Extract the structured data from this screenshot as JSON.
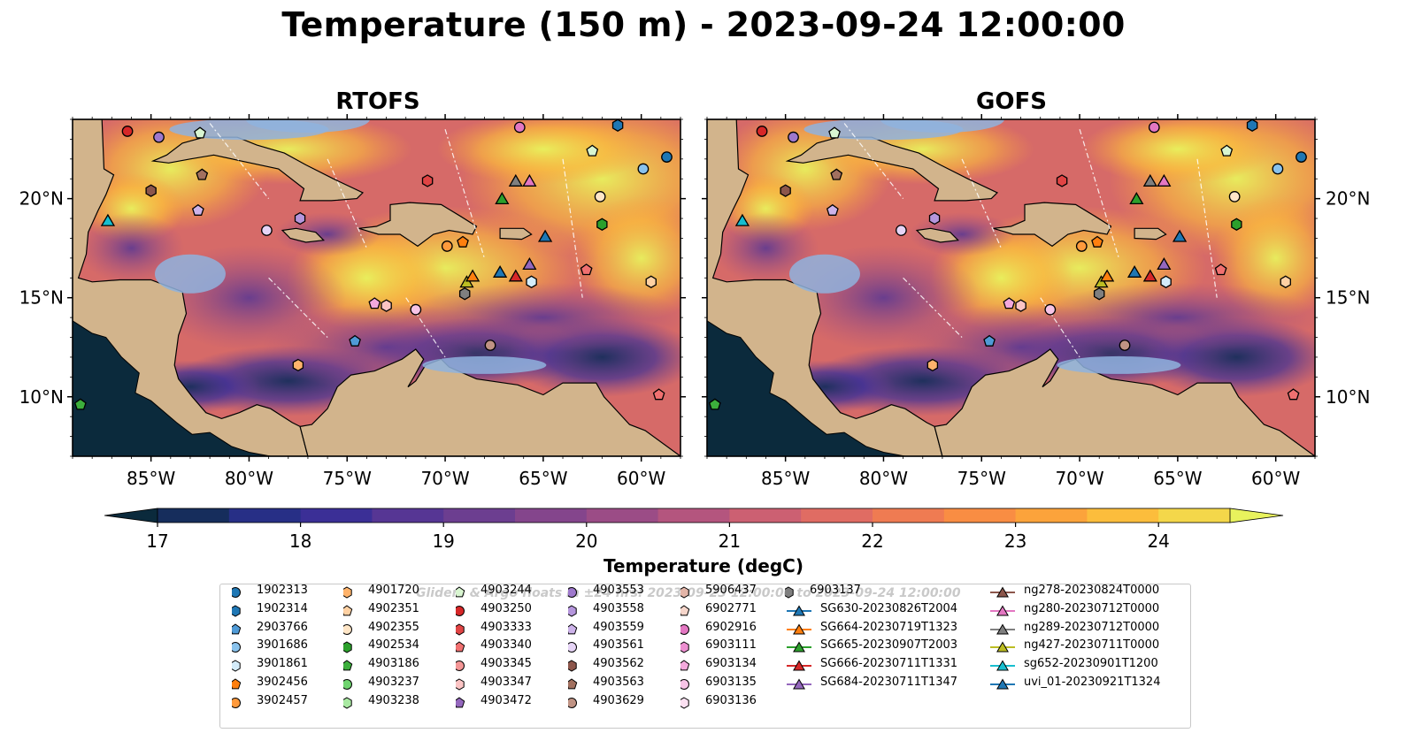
{
  "title": "Temperature (150 m) - 2023-09-24 12:00:00",
  "panels": [
    {
      "title": "RTOFS",
      "y_axis_side": "left"
    },
    {
      "title": "GOFS",
      "y_axis_side": "right"
    }
  ],
  "axes": {
    "lon_ticks": [
      "85°W",
      "80°W",
      "75°W",
      "70°W",
      "65°W",
      "60°W"
    ],
    "lat_ticks": [
      "20°N",
      "15°N",
      "10°N"
    ],
    "lon_range": [
      -89,
      -58
    ],
    "lat_range": [
      7,
      24
    ]
  },
  "colorbar": {
    "label": "Temperature (degC)",
    "ticks": [
      "17",
      "18",
      "19",
      "20",
      "21",
      "22",
      "23",
      "24"
    ],
    "range": [
      16.6,
      24.5
    ],
    "extend": "both",
    "colormap": "thermal",
    "colors": [
      "#0b2a3c",
      "#162d5c",
      "#272f86",
      "#3b2f96",
      "#563694",
      "#6c3e90",
      "#84458c",
      "#9b4c86",
      "#b4557e",
      "#cc6072",
      "#e06c63",
      "#ef7b52",
      "#f98d43",
      "#fca33b",
      "#fcbd3c",
      "#f4d74a",
      "#e8f25d"
    ]
  },
  "legend": {
    "overlay_text": "Gliders & Argo floats in ±24 hrs: 2023-09-23 12:00:00 to 2023-09-24 12:00:00",
    "columns": [
      [
        {
          "label": "1902313",
          "marker": "circle",
          "color": "#1f77b4"
        },
        {
          "label": "1902314",
          "marker": "hexagon",
          "color": "#1f77b4"
        },
        {
          "label": "2903766",
          "marker": "pentagon",
          "color": "#4f9ad6"
        },
        {
          "label": "3901686",
          "marker": "circle",
          "color": "#89c2ec"
        },
        {
          "label": "3901861",
          "marker": "hexagon",
          "color": "#d4ecfa"
        },
        {
          "label": "3902456",
          "marker": "pentagon",
          "color": "#ff7f0e"
        },
        {
          "label": "3902457",
          "marker": "circle",
          "color": "#ff9a3c"
        }
      ],
      [
        {
          "label": "4901720",
          "marker": "hexagon",
          "color": "#ffb36b"
        },
        {
          "label": "4902351",
          "marker": "pentagon",
          "color": "#ffd1a3"
        },
        {
          "label": "4902355",
          "marker": "circle",
          "color": "#ffe6c7"
        },
        {
          "label": "4902534",
          "marker": "hexagon",
          "color": "#2ca02c"
        },
        {
          "label": "4903186",
          "marker": "pentagon",
          "color": "#3cae3c"
        },
        {
          "label": "4903237",
          "marker": "circle",
          "color": "#6fd36f"
        },
        {
          "label": "4903238",
          "marker": "hexagon",
          "color": "#a9e9a2"
        }
      ],
      [
        {
          "label": "4903244",
          "marker": "pentagon",
          "color": "#d8f5d0"
        },
        {
          "label": "4903250",
          "marker": "circle",
          "color": "#d62728"
        },
        {
          "label": "4903333",
          "marker": "hexagon",
          "color": "#e04444"
        },
        {
          "label": "4903340",
          "marker": "pentagon",
          "color": "#f07070"
        },
        {
          "label": "4903345",
          "marker": "circle",
          "color": "#f49696"
        },
        {
          "label": "4903347",
          "marker": "hexagon",
          "color": "#fbc4c4"
        },
        {
          "label": "4903472",
          "marker": "pentagon",
          "color": "#9467bd"
        }
      ],
      [
        {
          "label": "4903553",
          "marker": "circle",
          "color": "#9e78cc"
        },
        {
          "label": "4903558",
          "marker": "hexagon",
          "color": "#b596dc"
        },
        {
          "label": "4903559",
          "marker": "pentagon",
          "color": "#cdb3ea"
        },
        {
          "label": "4903561",
          "marker": "circle",
          "color": "#e6d4f6"
        },
        {
          "label": "4903562",
          "marker": "hexagon",
          "color": "#8c564b"
        },
        {
          "label": "4903563",
          "marker": "pentagon",
          "color": "#a2705f"
        },
        {
          "label": "4903629",
          "marker": "circle",
          "color": "#c09384"
        }
      ],
      [
        {
          "label": "5906437",
          "marker": "hexagon",
          "color": "#e3b5a8"
        },
        {
          "label": "6902771",
          "marker": "pentagon",
          "color": "#f6d6cb"
        },
        {
          "label": "6902916",
          "marker": "circle",
          "color": "#e377c2"
        },
        {
          "label": "6903111",
          "marker": "hexagon",
          "color": "#ec8fd0"
        },
        {
          "label": "6903134",
          "marker": "pentagon",
          "color": "#f3a9dc"
        },
        {
          "label": "6903135",
          "marker": "circle",
          "color": "#f7c4e6"
        },
        {
          "label": "6903136",
          "marker": "hexagon",
          "color": "#fbe0f1"
        }
      ],
      [
        {
          "label": "6903137",
          "marker": "hexagon",
          "color": "#7f7f7f",
          "line": false
        },
        {
          "label": "SG630-20230826T2004",
          "marker": "triangle",
          "color": "#1f77b4",
          "line": true
        },
        {
          "label": "SG664-20230719T1323",
          "marker": "triangle",
          "color": "#ff7f0e",
          "line": true
        },
        {
          "label": "SG665-20230907T2003",
          "marker": "triangle",
          "color": "#2ca02c",
          "line": true
        },
        {
          "label": "SG666-20230711T1331",
          "marker": "triangle",
          "color": "#d62728",
          "line": true
        },
        {
          "label": "SG684-20230711T1347",
          "marker": "triangle",
          "color": "#9467bd",
          "line": true
        }
      ],
      [
        {
          "label": "ng278-20230824T0000",
          "marker": "triangle",
          "color": "#8c564b",
          "line": true
        },
        {
          "label": "ng280-20230712T0000",
          "marker": "triangle",
          "color": "#e377c2",
          "line": true
        },
        {
          "label": "ng289-20230712T0000",
          "marker": "triangle",
          "color": "#7f7f7f",
          "line": true
        },
        {
          "label": "ng427-20230711T0000",
          "marker": "triangle",
          "color": "#bcbd22",
          "line": true
        },
        {
          "label": "sg652-20230901T1200",
          "marker": "triangle",
          "color": "#17becf",
          "line": true
        },
        {
          "label": "uvi_01-20230921T1324",
          "marker": "triangle",
          "color": "#1f77b4",
          "line": true
        }
      ]
    ]
  },
  "observations": [
    {
      "lon": -86.2,
      "lat": 23.4,
      "marker": "circle",
      "color": "#d62728"
    },
    {
      "lon": -84.6,
      "lat": 23.1,
      "marker": "circle",
      "color": "#9e78cc"
    },
    {
      "lon": -82.5,
      "lat": 23.3,
      "marker": "pentagon",
      "color": "#d8f5d0"
    },
    {
      "lon": -85.0,
      "lat": 20.4,
      "marker": "hexagon",
      "color": "#8c564b"
    },
    {
      "lon": -82.4,
      "lat": 21.2,
      "marker": "pentagon",
      "color": "#a2705f"
    },
    {
      "lon": -82.6,
      "lat": 19.4,
      "marker": "pentagon",
      "color": "#cdb3ea"
    },
    {
      "lon": -79.1,
      "lat": 18.4,
      "marker": "circle",
      "color": "#e6d4f6"
    },
    {
      "lon": -77.4,
      "lat": 19.0,
      "marker": "hexagon",
      "color": "#b596dc"
    },
    {
      "lon": -87.2,
      "lat": 18.9,
      "marker": "triangle",
      "color": "#17becf"
    },
    {
      "lon": -70.9,
      "lat": 20.9,
      "marker": "hexagon",
      "color": "#e04444"
    },
    {
      "lon": -69.9,
      "lat": 17.6,
      "marker": "circle",
      "color": "#ff9a3c"
    },
    {
      "lon": -69.1,
      "lat": 17.8,
      "marker": "pentagon",
      "color": "#ff7f0e"
    },
    {
      "lon": -68.9,
      "lat": 15.8,
      "marker": "triangle",
      "color": "#bcbd22"
    },
    {
      "lon": -68.6,
      "lat": 16.1,
      "marker": "triangle",
      "color": "#ff7f0e"
    },
    {
      "lon": -69.0,
      "lat": 15.2,
      "marker": "hexagon",
      "color": "#7f7f7f"
    },
    {
      "lon": -67.1,
      "lat": 20.0,
      "marker": "triangle",
      "color": "#2ca02c"
    },
    {
      "lon": -66.4,
      "lat": 20.9,
      "marker": "triangle",
      "color": "#7f7f7f"
    },
    {
      "lon": -65.7,
      "lat": 20.9,
      "marker": "triangle",
      "color": "#e377c2"
    },
    {
      "lon": -66.2,
      "lat": 23.6,
      "marker": "circle",
      "color": "#e377c2"
    },
    {
      "lon": -67.2,
      "lat": 16.3,
      "marker": "triangle",
      "color": "#1f77b4"
    },
    {
      "lon": -66.4,
      "lat": 16.1,
      "marker": "triangle",
      "color": "#d62728"
    },
    {
      "lon": -65.7,
      "lat": 16.7,
      "marker": "triangle",
      "color": "#9467bd"
    },
    {
      "lon": -65.6,
      "lat": 15.8,
      "marker": "hexagon",
      "color": "#d4ecfa"
    },
    {
      "lon": -64.9,
      "lat": 18.1,
      "marker": "triangle",
      "color": "#1f77b4"
    },
    {
      "lon": -62.8,
      "lat": 16.4,
      "marker": "pentagon",
      "color": "#f07070"
    },
    {
      "lon": -62.1,
      "lat": 20.1,
      "marker": "circle",
      "color": "#ffe6c7"
    },
    {
      "lon": -62.0,
      "lat": 18.7,
      "marker": "hexagon",
      "color": "#2ca02c"
    },
    {
      "lon": -62.5,
      "lat": 22.4,
      "marker": "pentagon",
      "color": "#d8f5d0"
    },
    {
      "lon": -61.2,
      "lat": 23.7,
      "marker": "hexagon",
      "color": "#1f77b4"
    },
    {
      "lon": -59.9,
      "lat": 21.5,
      "marker": "circle",
      "color": "#89c2ec"
    },
    {
      "lon": -58.7,
      "lat": 22.1,
      "marker": "circle",
      "color": "#1f77b4"
    },
    {
      "lon": -59.5,
      "lat": 15.8,
      "marker": "hexagon",
      "color": "#ffd1a3"
    },
    {
      "lon": -59.1,
      "lat": 10.1,
      "marker": "pentagon",
      "color": "#f07070"
    },
    {
      "lon": -73.6,
      "lat": 14.7,
      "marker": "pentagon",
      "color": "#f3a9dc"
    },
    {
      "lon": -73.0,
      "lat": 14.6,
      "marker": "hexagon",
      "color": "#fbc4c4"
    },
    {
      "lon": -71.5,
      "lat": 14.4,
      "marker": "circle",
      "color": "#f7c4e6"
    },
    {
      "lon": -74.6,
      "lat": 12.8,
      "marker": "pentagon",
      "color": "#4f9ad6"
    },
    {
      "lon": -67.7,
      "lat": 12.6,
      "marker": "circle",
      "color": "#c09384"
    },
    {
      "lon": -77.5,
      "lat": 11.6,
      "marker": "hexagon",
      "color": "#ffb36b"
    },
    {
      "lon": -88.6,
      "lat": 9.6,
      "marker": "pentagon",
      "color": "#3cae3c"
    }
  ]
}
